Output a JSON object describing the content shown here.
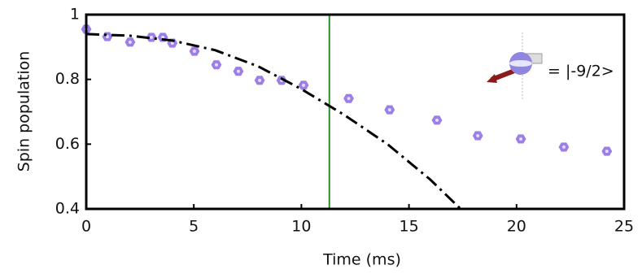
{
  "chart_data": {
    "type": "scatter",
    "x_label": "Time (ms)",
    "y_label": "Spin population",
    "xlim": [
      0,
      25
    ],
    "ylim": [
      0.4,
      1
    ],
    "xticks": [
      0,
      5,
      10,
      15,
      20,
      25
    ],
    "yticks": [
      0.4,
      0.6,
      0.8,
      1
    ],
    "series": [
      {
        "color": "#9b7fe6",
        "x": [
          0,
          0.98,
          2.04,
          3.03,
          3.56,
          4.0,
          5.03,
          6.05,
          7.07,
          8.06,
          9.08,
          10.1,
          12.2,
          14.1,
          16.3,
          18.2,
          20.2,
          22.2,
          24.2
        ],
        "values": [
          0.955,
          0.932,
          0.915,
          0.93,
          0.93,
          0.912,
          0.887,
          0.845,
          0.825,
          0.797,
          0.797,
          0.782,
          0.741,
          0.706,
          0.674,
          0.626,
          0.616,
          0.591,
          0.578
        ]
      },
      {
        "type": "line",
        "color": "#000000",
        "x": [
          0,
          2,
          4,
          6,
          8,
          10,
          12,
          14,
          16,
          17.4
        ],
        "values": [
          0.94,
          0.935,
          0.92,
          0.89,
          0.84,
          0.77,
          0.69,
          0.6,
          0.49,
          0.4
        ]
      }
    ],
    "vline": {
      "x": 11.3,
      "color": "#2e8b2e"
    },
    "annotation": "= |-9/2>"
  }
}
